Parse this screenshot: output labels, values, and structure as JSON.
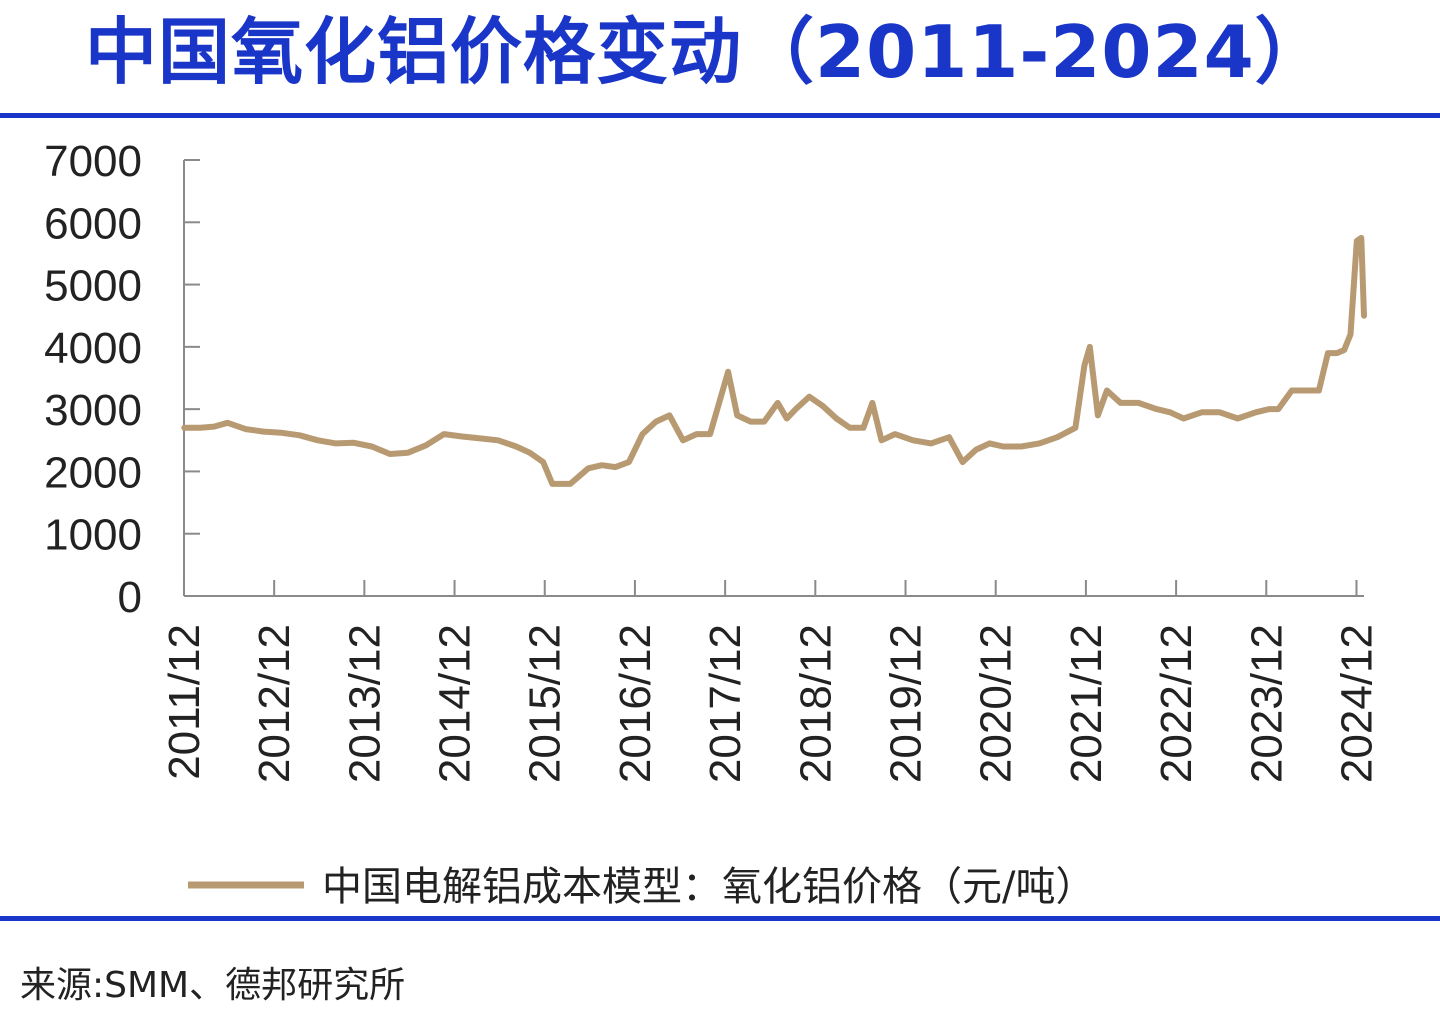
{
  "title": "中国氧化铝价格变动（2011-2024）",
  "source": "来源:SMM、德邦研究所",
  "colors": {
    "title": "#1a36c8",
    "rule": "#1a36c8",
    "series": "#b89a72",
    "axis": "#8a8a8a",
    "text": "#222222"
  },
  "chart_data": {
    "type": "line",
    "title": "",
    "xlabel": "",
    "ylabel": "",
    "ylim": [
      0,
      7000
    ],
    "yticks": [
      0,
      1000,
      2000,
      3000,
      4000,
      5000,
      6000,
      7000
    ],
    "xlim": [
      2011.917,
      2025.0
    ],
    "xticks": [
      "2011/12",
      "2012/12",
      "2013/12",
      "2014/12",
      "2015/12",
      "2016/12",
      "2017/12",
      "2018/12",
      "2019/12",
      "2020/12",
      "2021/12",
      "2022/12",
      "2023/12",
      "2024/12"
    ],
    "legend": "bottom",
    "grid": false,
    "series": [
      {
        "name": "中国电解铝成本模型：氧化铝价格（元/吨）",
        "x": [
          2011.92,
          2012.1,
          2012.25,
          2012.4,
          2012.6,
          2012.8,
          2013.0,
          2013.2,
          2013.4,
          2013.6,
          2013.8,
          2014.0,
          2014.2,
          2014.4,
          2014.6,
          2014.8,
          2015.0,
          2015.2,
          2015.4,
          2015.6,
          2015.75,
          2015.9,
          2016.0,
          2016.2,
          2016.4,
          2016.55,
          2016.7,
          2016.85,
          2017.0,
          2017.15,
          2017.3,
          2017.45,
          2017.6,
          2017.75,
          2017.85,
          2017.95,
          2018.05,
          2018.2,
          2018.35,
          2018.5,
          2018.6,
          2018.7,
          2018.85,
          2019.0,
          2019.15,
          2019.3,
          2019.45,
          2019.55,
          2019.65,
          2019.8,
          2020.0,
          2020.2,
          2020.4,
          2020.55,
          2020.7,
          2020.85,
          2021.0,
          2021.2,
          2021.4,
          2021.6,
          2021.8,
          2021.9,
          2021.96,
          2022.05,
          2022.15,
          2022.3,
          2022.5,
          2022.7,
          2022.85,
          2023.0,
          2023.2,
          2023.4,
          2023.6,
          2023.8,
          2023.95,
          2024.05,
          2024.2,
          2024.35,
          2024.5,
          2024.6,
          2024.7,
          2024.78,
          2024.85,
          2024.92,
          2024.97,
          2025.0
        ],
        "y": [
          2700,
          2700,
          2720,
          2780,
          2680,
          2640,
          2620,
          2580,
          2500,
          2450,
          2460,
          2400,
          2280,
          2300,
          2420,
          2600,
          2560,
          2530,
          2500,
          2400,
          2300,
          2150,
          1800,
          1800,
          2050,
          2100,
          2070,
          2150,
          2600,
          2800,
          2900,
          2500,
          2600,
          2600,
          3100,
          3600,
          2900,
          2800,
          2800,
          3100,
          2850,
          3000,
          3200,
          3050,
          2850,
          2700,
          2700,
          3100,
          2500,
          2600,
          2500,
          2450,
          2550,
          2150,
          2350,
          2450,
          2400,
          2400,
          2450,
          2550,
          2700,
          3700,
          4000,
          2900,
          3300,
          3100,
          3100,
          3000,
          2950,
          2850,
          2950,
          2950,
          2850,
          2950,
          3000,
          3000,
          3300,
          3300,
          3300,
          3900,
          3900,
          3950,
          4200,
          5700,
          5750,
          4500
        ]
      }
    ]
  }
}
